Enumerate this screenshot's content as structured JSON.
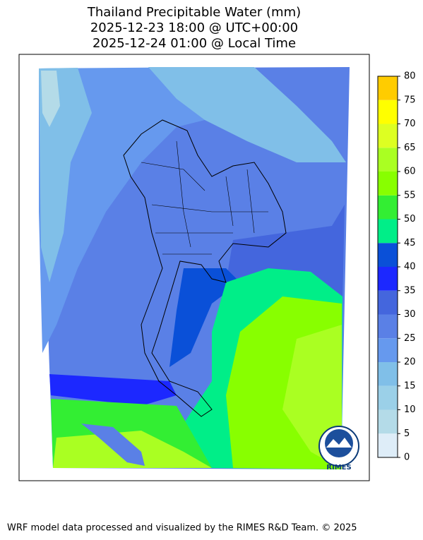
{
  "chart_data": {
    "type": "map",
    "title": [
      "Thailand Precipitable Water (mm)",
      "2025-12-23 18:00 @ UTC+00:00",
      "2025-12-24 01:00 @ Local Time"
    ],
    "colorbar": {
      "bins": [
        0,
        5,
        10,
        15,
        20,
        25,
        30,
        35,
        40,
        45,
        50,
        55,
        60,
        65,
        70,
        75,
        80
      ],
      "colors": [
        "#deedf8",
        "#b4dbe8",
        "#9bd0e8",
        "#80bfe8",
        "#6699ee",
        "#5a80e6",
        "#4466dd",
        "#1c28ff",
        "#0a50d8",
        "#00ee88",
        "#33ee33",
        "#88ff00",
        "#aaff22",
        "#ddff22",
        "#ffff00",
        "#ffcc00"
      ]
    },
    "logo": "RIMES",
    "footer": "WRF model data processed and visualized by the RIMES R&D Team. © 2025"
  }
}
